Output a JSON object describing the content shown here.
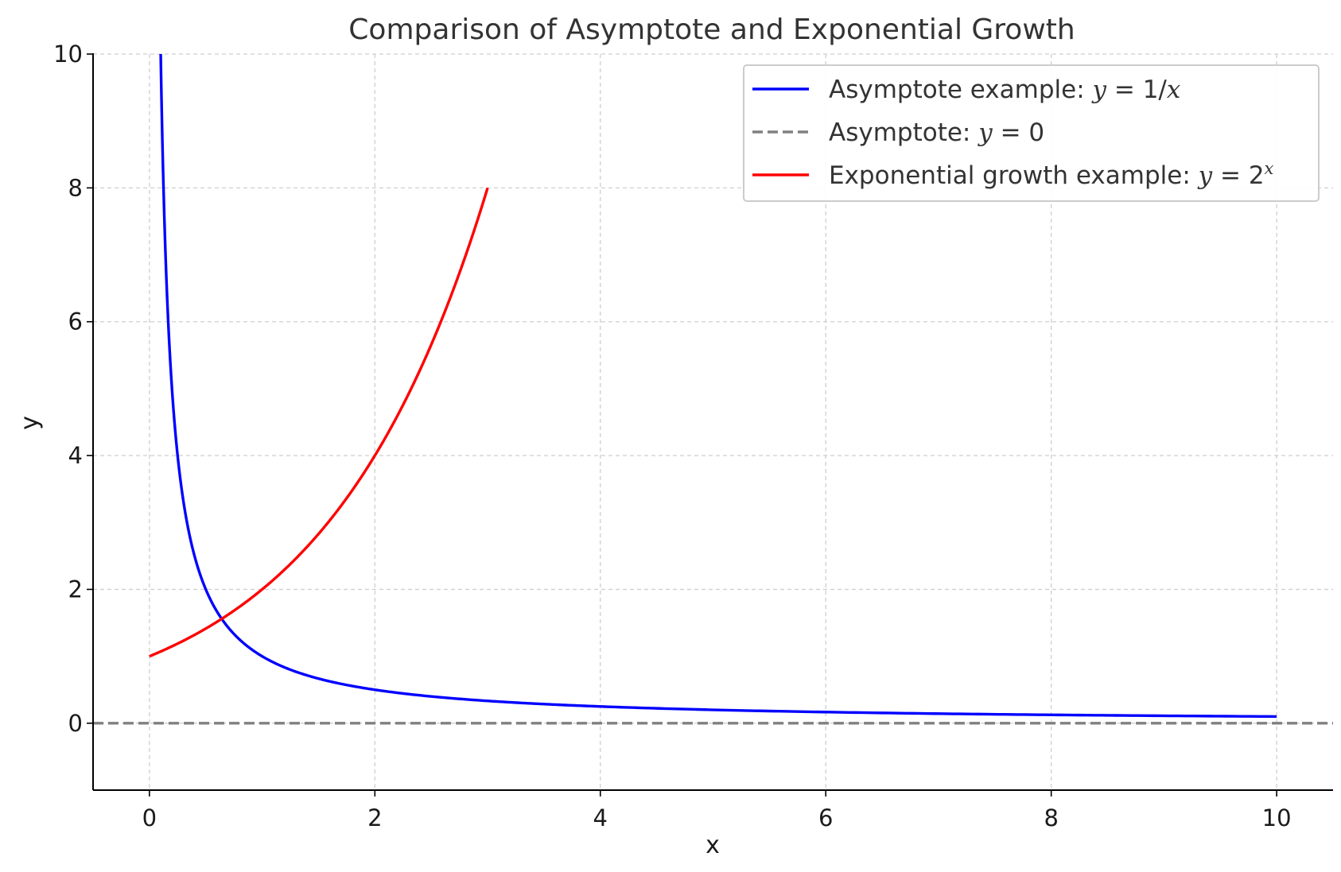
{
  "chart_data": {
    "type": "line",
    "title": "Comparison of Asymptote and Exponential Growth",
    "xlabel": "x",
    "ylabel": "y",
    "xlim": [
      -0.5,
      10.5
    ],
    "ylim": [
      -1,
      10
    ],
    "x_ticks": [
      0,
      2,
      4,
      6,
      8,
      10
    ],
    "y_ticks": [
      0,
      2,
      4,
      6,
      8,
      10
    ],
    "x_tick_labels": [
      "0",
      "2",
      "4",
      "6",
      "8",
      "10"
    ],
    "y_tick_labels": [
      "0",
      "2",
      "4",
      "6",
      "8",
      "10"
    ],
    "grid": true,
    "legend_position": "top-right",
    "series": [
      {
        "name": "Asymptote example: y = 1/x",
        "function": "1/x",
        "x_range": [
          0.1,
          10
        ],
        "color": "#0000ff",
        "style": "solid",
        "sample_points": [
          [
            0.1,
            10
          ],
          [
            0.2,
            5
          ],
          [
            0.5,
            2
          ],
          [
            1,
            1
          ],
          [
            2,
            0.5
          ],
          [
            4,
            0.25
          ],
          [
            6,
            0.1667
          ],
          [
            8,
            0.125
          ],
          [
            10,
            0.1
          ]
        ]
      },
      {
        "name": "Asymptote: y = 0",
        "function": "0",
        "x_range": [
          -0.5,
          10.5
        ],
        "color": "#808080",
        "style": "dashed",
        "sample_points": [
          [
            -0.5,
            0
          ],
          [
            10.5,
            0
          ]
        ]
      },
      {
        "name": "Exponential growth example: y = 2^x",
        "function": "2^x",
        "x_range": [
          0,
          3
        ],
        "color": "#ff0000",
        "style": "solid",
        "sample_points": [
          [
            0,
            1
          ],
          [
            1,
            2
          ],
          [
            2,
            4
          ],
          [
            3,
            8
          ]
        ]
      }
    ],
    "legend": {
      "entries": [
        {
          "prefix": "Asymptote example: ",
          "math": "y = 1/x"
        },
        {
          "prefix": "Asymptote: ",
          "math": "y = 0"
        },
        {
          "prefix": "Exponential growth example: ",
          "math": "y = 2^x"
        }
      ]
    }
  }
}
